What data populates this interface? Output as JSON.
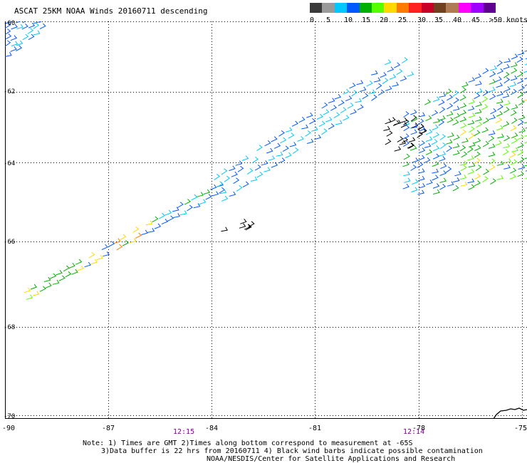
{
  "title": "ASCAT 25KM NOAA Winds 20160711 descending",
  "color_scale": {
    "labels": [
      "0",
      "5",
      "10",
      "15",
      "20",
      "25",
      "30",
      "35",
      "40",
      "45",
      ">50 knots"
    ],
    "colors": [
      "#3a3a3a",
      "#9a9a9a",
      "#00c8ff",
      "#0058ff",
      "#00b000",
      "#55ff00",
      "#ffd800",
      "#ff7a00",
      "#ff2020",
      "#c80028",
      "#704020",
      "#b07a55",
      "#ff00ff",
      "#a000ff",
      "#600090"
    ]
  },
  "map": {
    "latitudes": [
      "-60",
      "-62",
      "-64",
      "-66",
      "-68",
      "-70"
    ],
    "longitudes": [
      "-90",
      "-87",
      "-84",
      "-81",
      "-78",
      "-75"
    ],
    "lat_range": [
      -70,
      -60
    ],
    "lon_range": [
      -90,
      -75
    ]
  },
  "times": [
    "12:15",
    "12:14"
  ],
  "notes": [
    "Note: 1) Times are GMT 2)Times along bottom correspond to measurement at -65S",
    "3)Data buffer is 22 hrs from 20160711 4) Black wind barbs indicate possible contamination",
    "NOAA/NESDIS/Center for Satellite Applications and Research"
  ]
}
